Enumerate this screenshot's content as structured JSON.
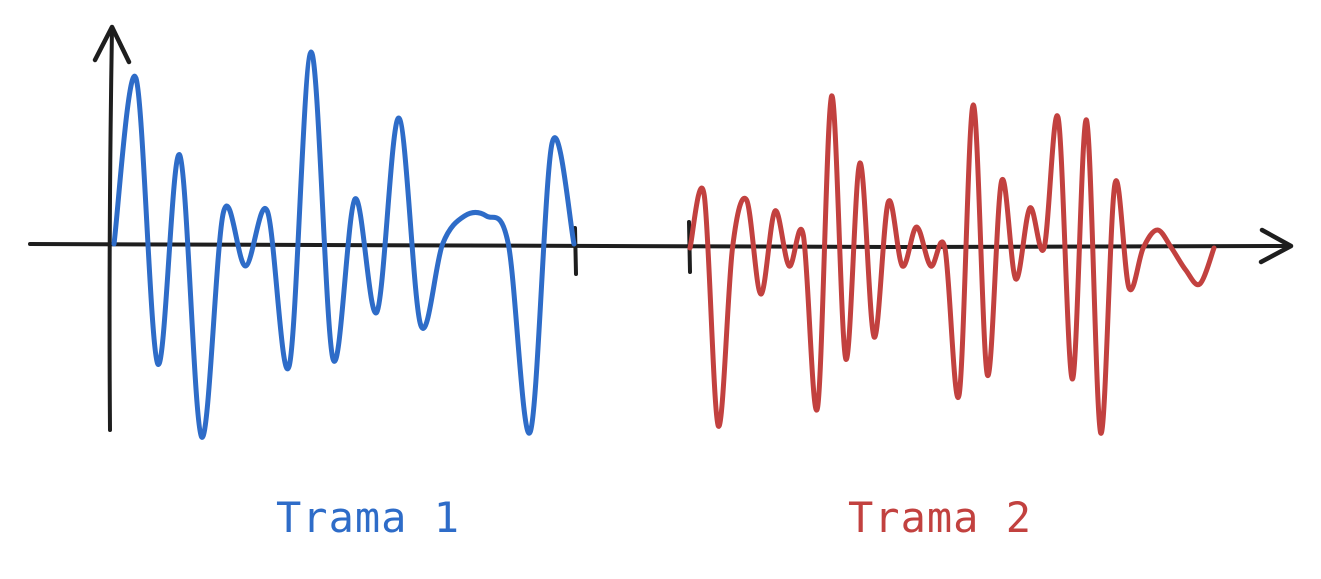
{
  "frames": [
    {
      "label": "Trama 1",
      "color": "#2e6cc8",
      "peaks": [
        0,
        166,
        -120,
        89,
        -193,
        32,
        -22,
        33,
        -122,
        192,
        -115,
        45,
        -68,
        126,
        -81,
        0,
        28,
        28,
        0,
        -188,
        101,
        0
      ]
    },
    {
      "label": "Trama 2",
      "color": "#c2413f",
      "peaks": [
        0,
        53,
        -178,
        0,
        48,
        -46,
        37,
        -18,
        13,
        -160,
        152,
        -111,
        85,
        -89,
        46,
        -18,
        21,
        -18,
        0,
        -147,
        143,
        -127,
        67,
        -31,
        40,
        0,
        130,
        -131,
        128,
        -185,
        64,
        -40,
        0,
        18,
        0,
        -22,
        -36,
        0
      ]
    }
  ],
  "axis_color": "#1e1e1e"
}
